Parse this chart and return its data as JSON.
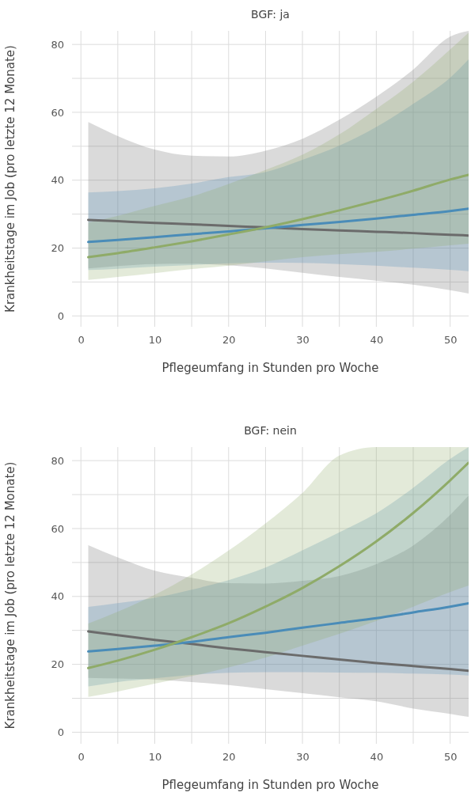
{
  "chart_data": [
    {
      "type": "line",
      "title": "BGF: ja",
      "xlabel": "Pflegeumfang in Stunden pro Woche",
      "ylabel": "Krankheitstage im Job (pro letzte 12 Monate)",
      "x": [
        1,
        5,
        10,
        15,
        20,
        25,
        30,
        35,
        40,
        45,
        50,
        52.5
      ],
      "xlim": [
        -1.2,
        52.5
      ],
      "ylim": [
        -3.2,
        84
      ],
      "xticks": [
        0,
        {
          "value": 5,
          "label": null
        },
        10,
        {
          "value": 15,
          "label": null
        },
        20,
        {
          "value": 25,
          "label": null
        },
        30,
        {
          "value": 35,
          "label": null
        },
        40,
        {
          "value": 45,
          "label": null
        },
        50
      ],
      "yticks": [
        0,
        {
          "value": 10,
          "label": null
        },
        20,
        {
          "value": 30,
          "label": null
        },
        40,
        {
          "value": 50,
          "label": null
        },
        60,
        {
          "value": 70,
          "label": null
        },
        80
      ],
      "grid": true,
      "line_style": "solid",
      "marker": "none",
      "series": [
        {
          "color": "#6b6b6b",
          "values": [
            28.3,
            27.9,
            27.4,
            27.0,
            26.5,
            26.1,
            25.6,
            25.2,
            24.8,
            24.4,
            23.9,
            23.7
          ],
          "lower": [
            14.0,
            14.7,
            15.3,
            15.4,
            14.9,
            14.0,
            12.7,
            11.5,
            10.4,
            9.2,
            7.6,
            6.6
          ],
          "upper": [
            57.1,
            53.0,
            49.0,
            47.2,
            47.0,
            48.7,
            52.2,
            57.8,
            64.6,
            72.6,
            82.3,
            84
          ]
        },
        {
          "color": "#4a8cb8",
          "values": [
            21.8,
            22.4,
            23.2,
            24.1,
            24.9,
            25.8,
            26.8,
            27.7,
            28.7,
            29.8,
            30.9,
            31.6
          ],
          "lower": [
            13.5,
            13.9,
            14.5,
            15.0,
            15.5,
            15.7,
            15.6,
            15.3,
            14.8,
            14.2,
            13.6,
            13.2
          ],
          "upper": [
            36.4,
            36.8,
            37.6,
            39.0,
            40.9,
            42.4,
            46.0,
            50.2,
            55.7,
            62.5,
            70.2,
            75.6
          ]
        },
        {
          "color": "#8fab68",
          "values": [
            17.3,
            18.5,
            20.2,
            22.0,
            24.0,
            26.1,
            28.5,
            31.1,
            33.9,
            36.9,
            40.2,
            41.6
          ],
          "lower": [
            10.6,
            11.5,
            12.6,
            13.8,
            14.8,
            16.1,
            17.3,
            18.2,
            18.9,
            19.8,
            20.8,
            21.3
          ],
          "upper": [
            27.5,
            29.5,
            32.4,
            35.2,
            38.9,
            43.0,
            47.5,
            53.5,
            61.0,
            69.0,
            78.5,
            83.5
          ]
        }
      ]
    },
    {
      "type": "line",
      "title": "BGF: nein",
      "xlabel": "Pflegeumfang in Stunden pro Woche",
      "ylabel": "Krankheitstage im Job (pro letzte 12 Monate)",
      "x": [
        1,
        5,
        10,
        15,
        20,
        25,
        30,
        35,
        40,
        45,
        50,
        52.5
      ],
      "xlim": [
        -1.2,
        52.5
      ],
      "ylim": [
        -3.4,
        84
      ],
      "xticks": [
        0,
        {
          "value": 5,
          "label": null
        },
        10,
        {
          "value": 15,
          "label": null
        },
        20,
        {
          "value": 25,
          "label": null
        },
        30,
        {
          "value": 35,
          "label": null
        },
        40,
        {
          "value": 45,
          "label": null
        },
        50
      ],
      "yticks": [
        0,
        {
          "value": 10,
          "label": null
        },
        20,
        {
          "value": 30,
          "label": null
        },
        40,
        {
          "value": 50,
          "label": null
        },
        60,
        {
          "value": 70,
          "label": null
        },
        80
      ],
      "grid": true,
      "line_style": "solid",
      "marker": "none",
      "series": [
        {
          "color": "#6b6b6b",
          "values": [
            29.7,
            28.6,
            27.2,
            26.0,
            24.7,
            23.6,
            22.5,
            21.4,
            20.4,
            19.5,
            18.6,
            18.1
          ],
          "lower": [
            16.0,
            15.8,
            15.5,
            14.8,
            13.9,
            12.7,
            11.5,
            10.3,
            9.1,
            7.0,
            5.4,
            4.5
          ],
          "upper": [
            55.1,
            51.5,
            47.6,
            45.5,
            43.9,
            43.8,
            44.6,
            46.0,
            49.5,
            55.0,
            64.0,
            69.7
          ]
        },
        {
          "color": "#4a8cb8",
          "values": [
            23.8,
            24.5,
            25.5,
            26.6,
            28.0,
            29.3,
            30.8,
            32.2,
            33.6,
            35.3,
            37.0,
            38.0
          ],
          "lower": [
            13.5,
            14.8,
            15.9,
            16.9,
            17.5,
            17.7,
            17.7,
            17.6,
            17.5,
            17.3,
            17.0,
            16.7
          ],
          "upper": [
            36.9,
            38.0,
            39.6,
            42.0,
            44.8,
            48.5,
            53.6,
            58.9,
            64.5,
            72.0,
            80.5,
            84
          ]
        },
        {
          "color": "#8fab68",
          "values": [
            18.9,
            21.1,
            24.3,
            28.0,
            32.1,
            37.0,
            42.5,
            48.9,
            56.2,
            64.6,
            74.2,
            79.4
          ],
          "lower": [
            10.4,
            12.0,
            14.3,
            16.5,
            19.1,
            22.0,
            25.5,
            29.0,
            32.8,
            37.0,
            41.3,
            43.2
          ],
          "upper": [
            32.0,
            35.5,
            40.5,
            46.5,
            53.5,
            61.5,
            70.5,
            81.5,
            84,
            84,
            84,
            84
          ]
        }
      ]
    }
  ]
}
